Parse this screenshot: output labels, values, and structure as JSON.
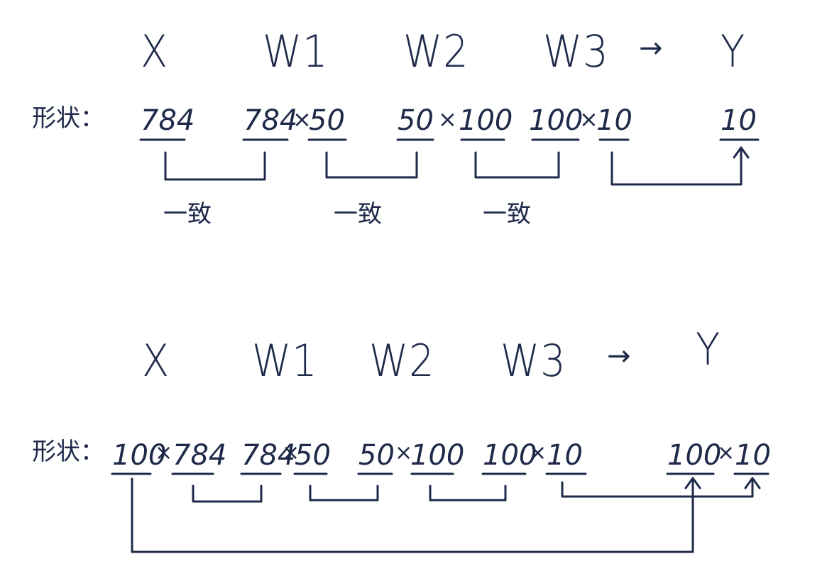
{
  "colors": {
    "ink": "#1f2a4a"
  },
  "panel_top": {
    "variables": [
      "X",
      "W1",
      "W2",
      "W3",
      "Y"
    ],
    "arrow": "→",
    "shape_label": "形状：",
    "shapes": [
      "784",
      "784",
      "×",
      "50",
      "50",
      "×",
      "100",
      "100",
      "×",
      "10",
      "10"
    ],
    "consistent_labels": [
      "一致",
      "一致",
      "一致"
    ]
  },
  "panel_bottom": {
    "variables": [
      "X",
      "W1",
      "W2",
      "W3",
      "Y"
    ],
    "arrow": "→",
    "shape_label": "形状：",
    "shapes": [
      "100",
      "×",
      "784",
      "784",
      "×",
      "50",
      "50",
      "×",
      "100",
      "100",
      "×",
      "10",
      "100",
      "×",
      "10"
    ]
  }
}
